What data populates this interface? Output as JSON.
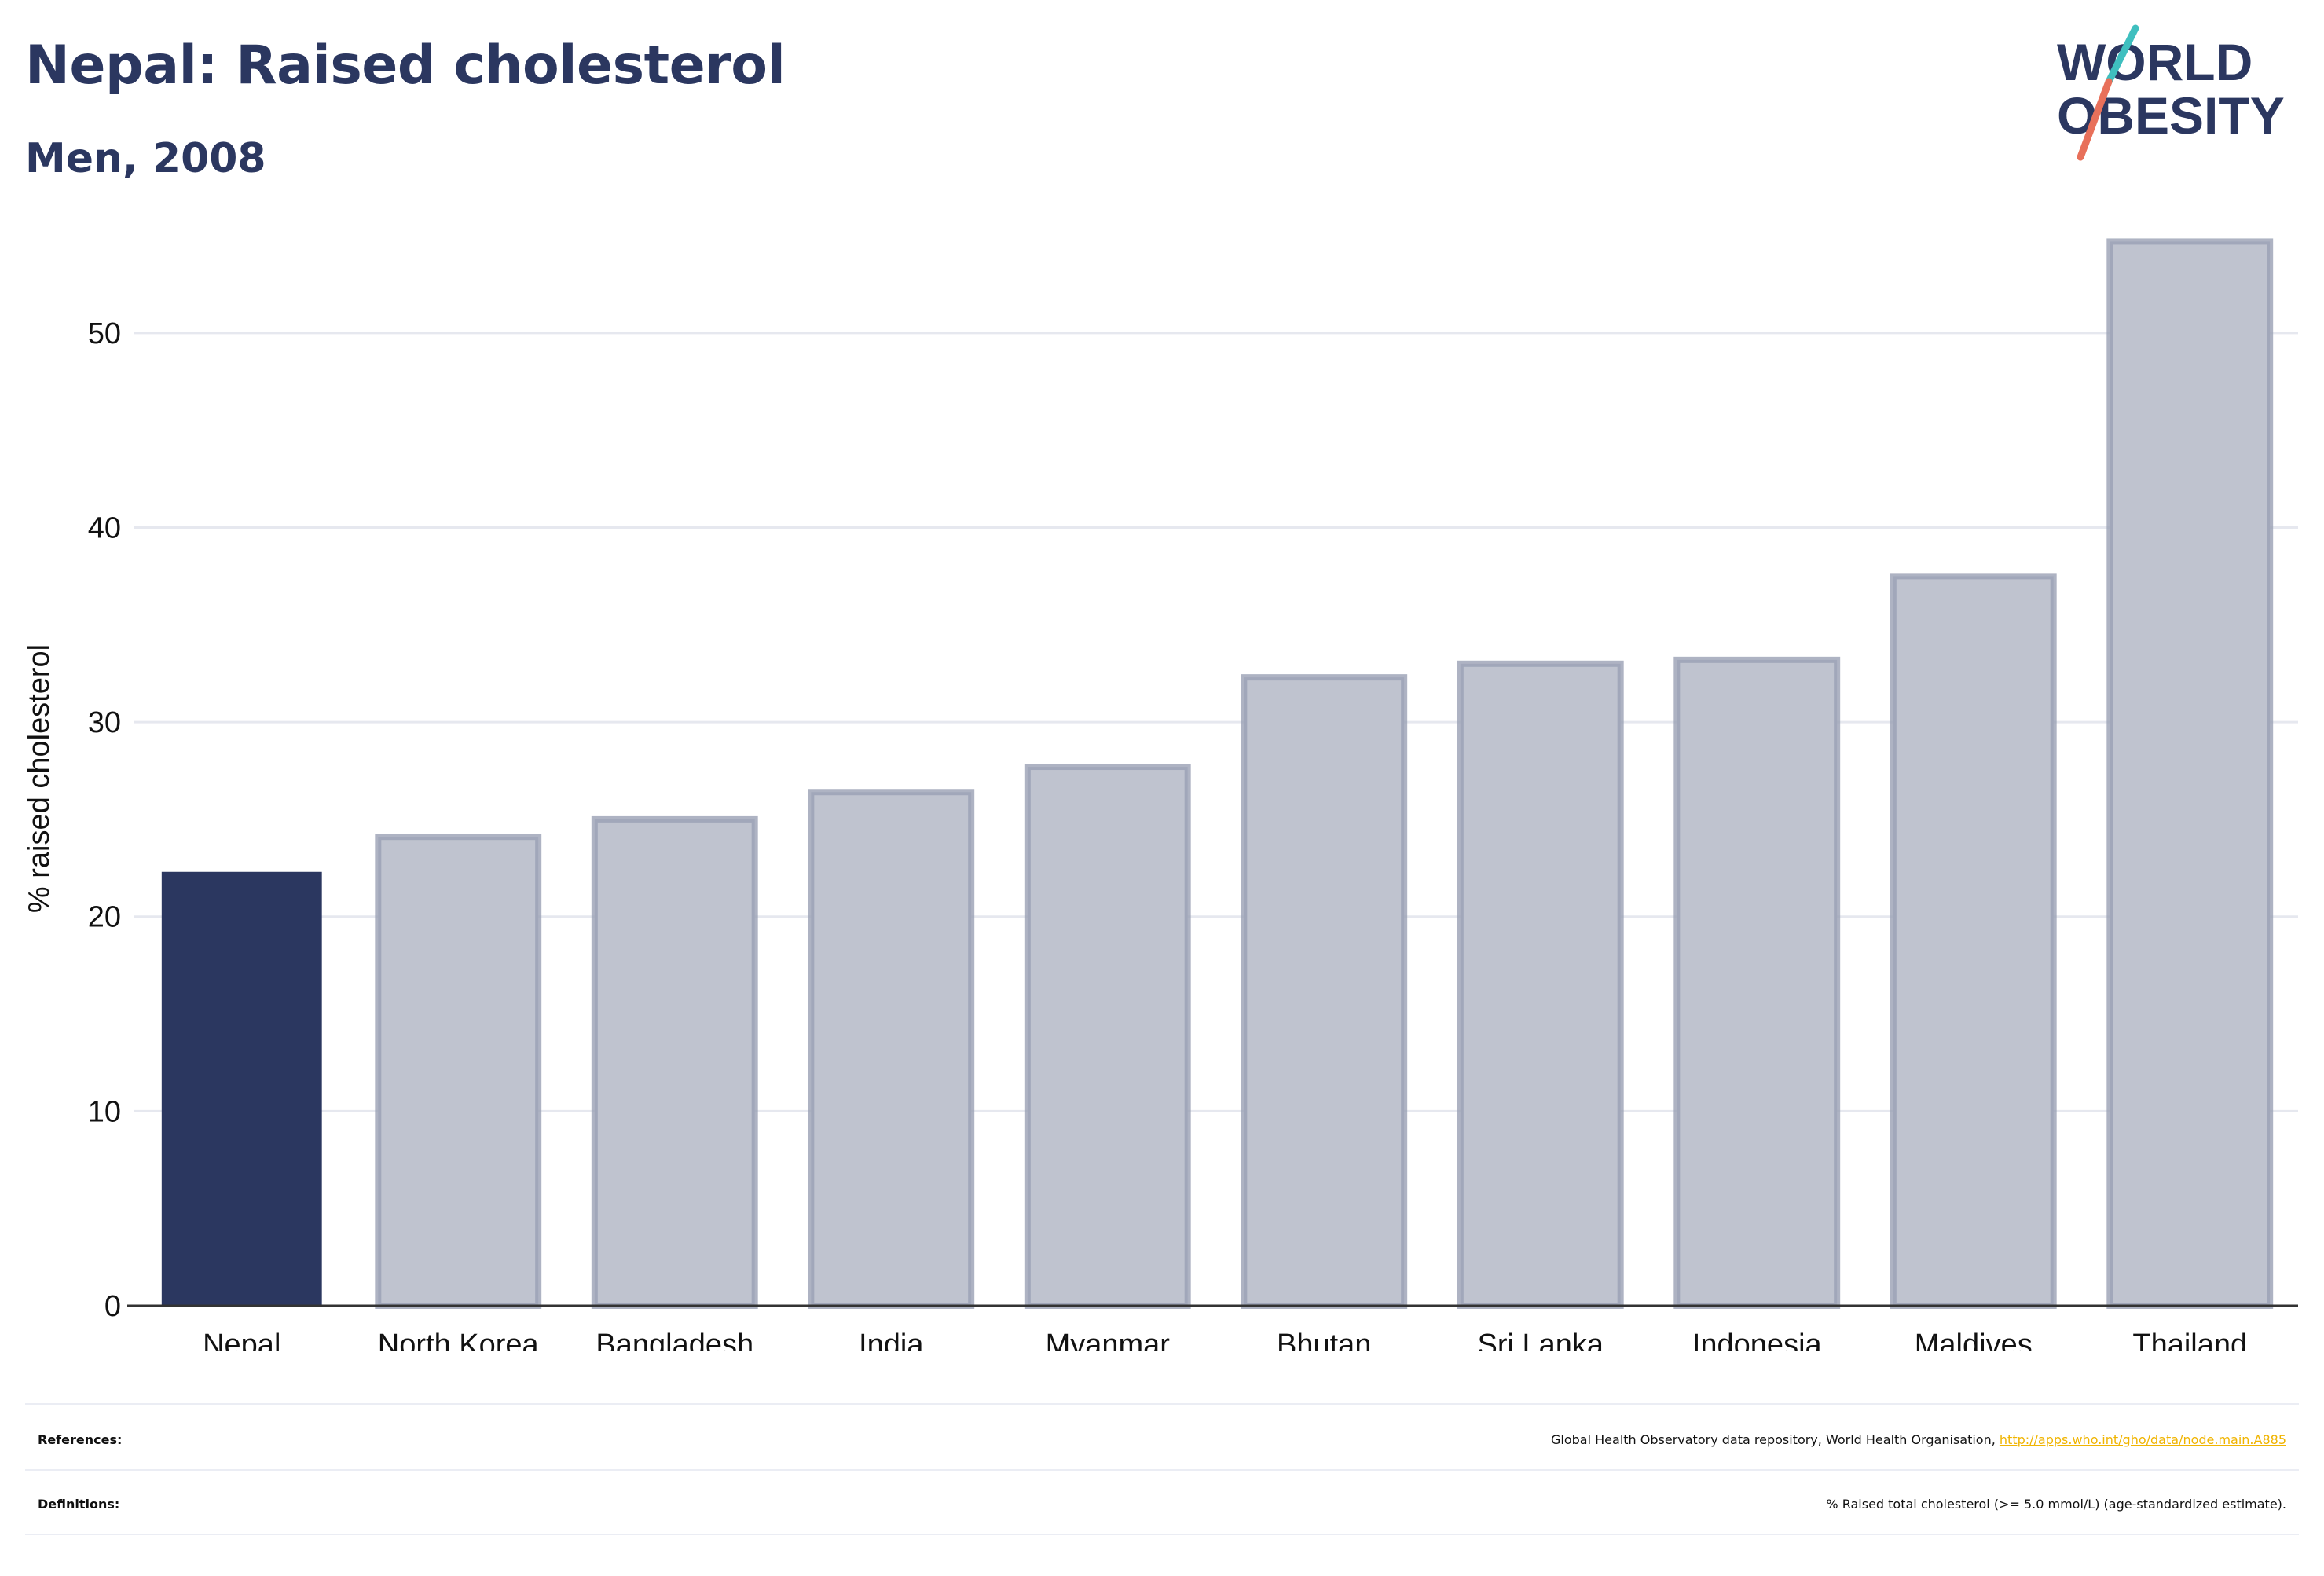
{
  "header": {
    "title": "Nepal: Raised cholesterol",
    "subtitle": "Men, 2008"
  },
  "logo": {
    "line1": "WORLD",
    "line2": "OBESITY",
    "colors": {
      "text": "#2b3760",
      "slash_teal": "#3fbfbf",
      "slash_coral": "#e8705a"
    }
  },
  "chart_data": {
    "type": "bar",
    "title": "Nepal: Raised cholesterol",
    "subtitle": "Men, 2008",
    "ylabel": "% raised cholesterol",
    "xlabel": "",
    "categories": [
      "Nepal",
      "North Korea",
      "Bangladesh",
      "India",
      "Myanmar",
      "Bhutan",
      "Sri Lanka",
      "Indonesia",
      "Maldives",
      "Thailand"
    ],
    "values": [
      22.3,
      24.1,
      25.0,
      26.4,
      27.7,
      32.3,
      33.0,
      33.2,
      37.5,
      54.7
    ],
    "highlight": "Nepal",
    "ylim": [
      0,
      55
    ],
    "yticks": [
      0,
      10,
      20,
      30,
      40,
      50
    ],
    "grid": true,
    "colors": {
      "highlight": "#2b3760",
      "other_fill": "#bfc3cf",
      "other_stroke": "#9aa0b4",
      "grid": "#e6e8ef",
      "axis": "#333333"
    }
  },
  "footer": {
    "references_label": "References:",
    "references_text": "Global Health Observatory data repository, World Health Organisation, ",
    "references_link": "http://apps.who.int/gho/data/node.main.A885",
    "definitions_label": "Definitions:",
    "definitions_text": "% Raised total cholesterol (>= 5.0 mmol/L) (age-standardized estimate)."
  }
}
